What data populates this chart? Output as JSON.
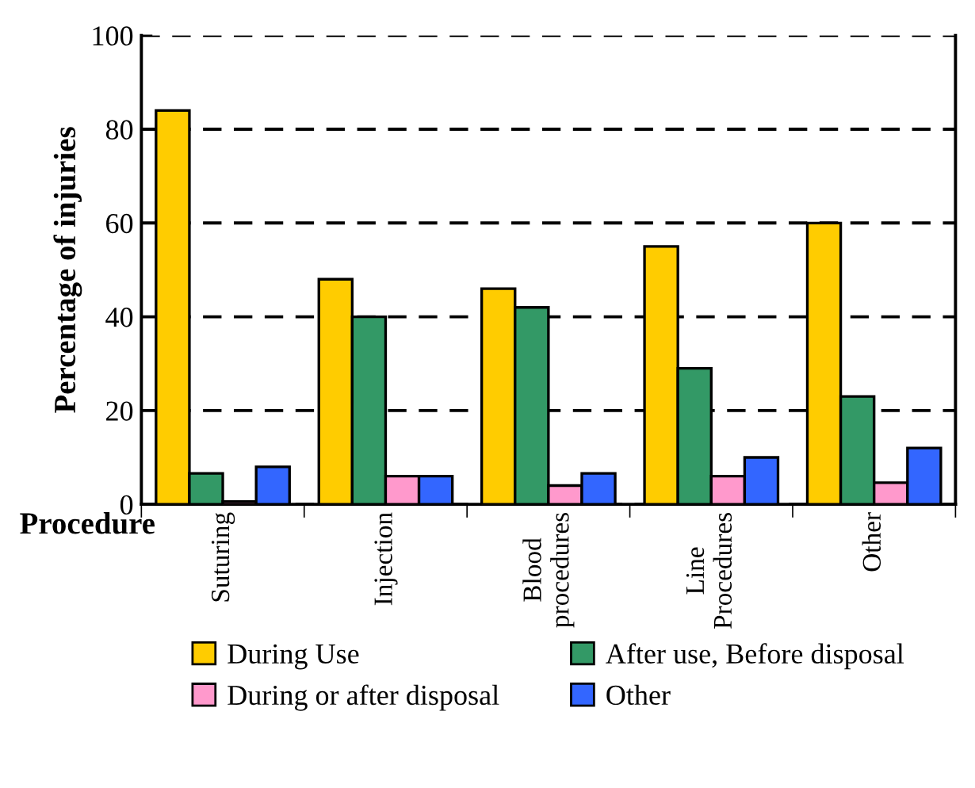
{
  "chart_data": {
    "type": "bar",
    "xlabel": "Procedure",
    "ylabel": "Percentage of injuries",
    "categories": [
      "Suturing",
      "Injection",
      "Blood\nprocedures",
      "Line\nProcedures",
      "Other"
    ],
    "series": [
      {
        "name": "During Use",
        "color": "#ffcc00",
        "values": [
          84,
          48,
          46,
          55,
          60
        ]
      },
      {
        "name": "After use, Before disposal",
        "color": "#339966",
        "values": [
          6.6,
          40,
          42,
          29,
          23
        ]
      },
      {
        "name": "During or after disposal",
        "color": "#ff99cc",
        "values": [
          0.6,
          6,
          4,
          6,
          4.6
        ]
      },
      {
        "name": "Other",
        "color": "#3366ff",
        "values": [
          8,
          6,
          6.6,
          10,
          12
        ]
      }
    ],
    "ylim": [
      0,
      100
    ],
    "yticks": [
      0,
      20,
      40,
      60,
      80,
      100
    ],
    "grid": "y",
    "legend": "bottom"
  }
}
